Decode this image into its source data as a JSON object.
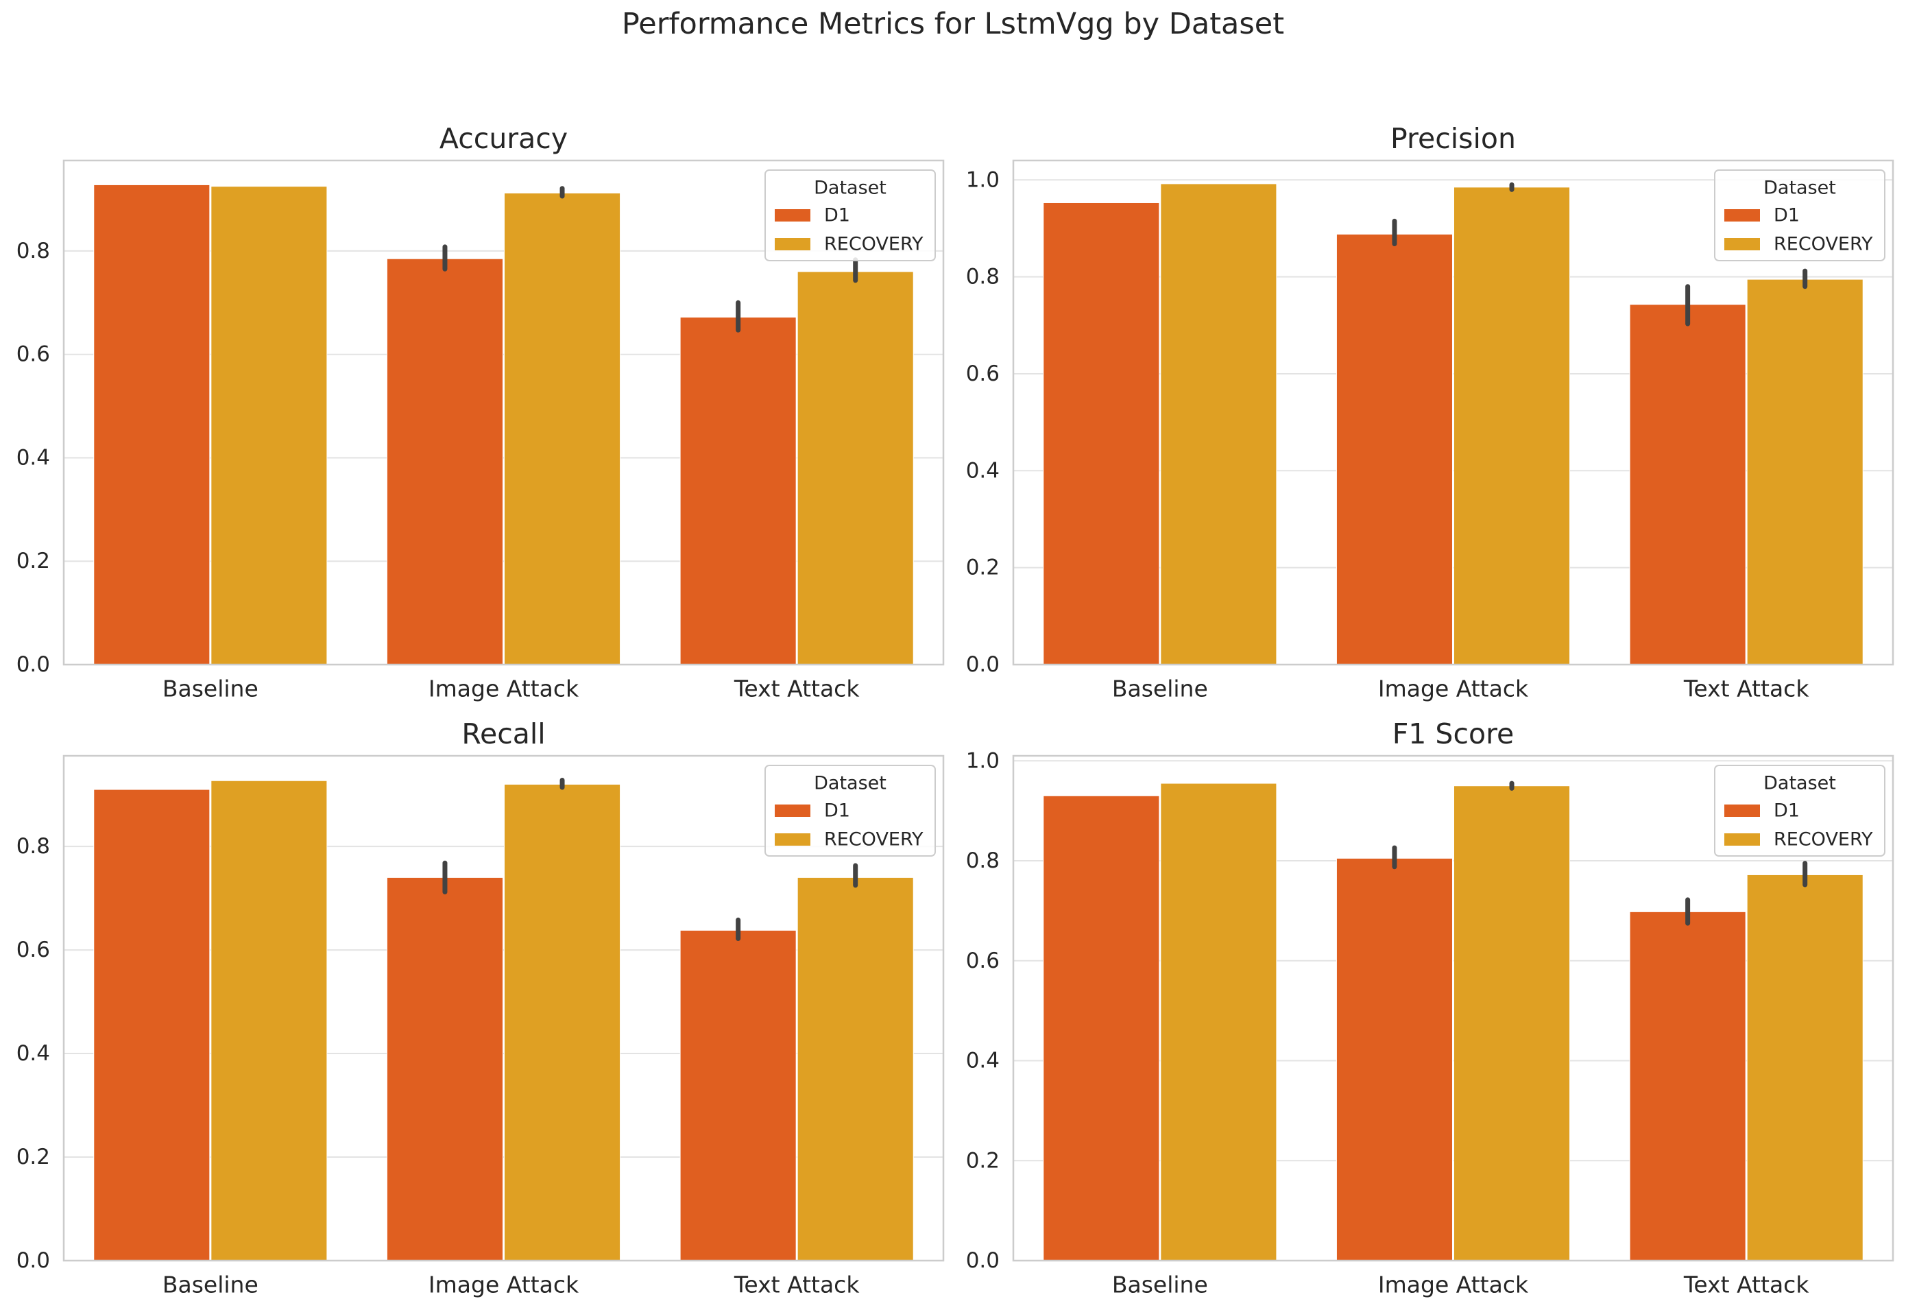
{
  "figure": {
    "title": "Performance Metrics for LstmVgg by Dataset"
  },
  "colors": {
    "D1": "#e05f20",
    "RECOVERY": "#dfa023",
    "grid": "#e3e3e3",
    "spine": "#cccccc",
    "errorbar": "#424242",
    "text": "#262626"
  },
  "chart_data": [
    {
      "type": "bar",
      "title": "Accuracy",
      "categories": [
        "Baseline",
        "Image Attack",
        "Text Attack"
      ],
      "series": [
        {
          "name": "D1",
          "values": [
            0.928,
            0.785,
            0.672
          ],
          "err_low": [
            null,
            0.765,
            0.647
          ],
          "err_high": [
            null,
            0.808,
            0.7
          ]
        },
        {
          "name": "RECOVERY",
          "values": [
            0.925,
            0.912,
            0.76
          ],
          "err_low": [
            null,
            0.906,
            0.743
          ],
          "err_high": [
            null,
            0.921,
            0.783
          ]
        }
      ],
      "yticks": [
        "0.0",
        "0.2",
        "0.4",
        "0.6",
        "0.8"
      ],
      "ylim": [
        0,
        0.975
      ],
      "legend": {
        "title": "Dataset",
        "position": "top-right"
      },
      "grid": true
    },
    {
      "type": "bar",
      "title": "Precision",
      "categories": [
        "Baseline",
        "Image Attack",
        "Text Attack"
      ],
      "series": [
        {
          "name": "D1",
          "values": [
            0.953,
            0.888,
            0.743
          ],
          "err_low": [
            null,
            0.868,
            0.703
          ],
          "err_high": [
            null,
            0.915,
            0.78
          ]
        },
        {
          "name": "RECOVERY",
          "values": [
            0.992,
            0.985,
            0.795
          ],
          "err_low": [
            null,
            0.98,
            0.78
          ],
          "err_high": [
            null,
            0.99,
            0.812
          ]
        }
      ],
      "yticks": [
        "0.0",
        "0.2",
        "0.4",
        "0.6",
        "0.8",
        "1.0"
      ],
      "ylim": [
        0,
        1.04
      ],
      "legend": {
        "title": "Dataset",
        "position": "top-right"
      },
      "grid": true
    },
    {
      "type": "bar",
      "title": "Recall",
      "categories": [
        "Baseline",
        "Image Attack",
        "Text Attack"
      ],
      "series": [
        {
          "name": "D1",
          "values": [
            0.91,
            0.74,
            0.638
          ],
          "err_low": [
            null,
            0.712,
            0.622
          ],
          "err_high": [
            null,
            0.768,
            0.658
          ]
        },
        {
          "name": "RECOVERY",
          "values": [
            0.927,
            0.92,
            0.74
          ],
          "err_low": [
            null,
            0.914,
            0.725
          ],
          "err_high": [
            null,
            0.928,
            0.763
          ]
        }
      ],
      "yticks": [
        "0.0",
        "0.2",
        "0.4",
        "0.6",
        "0.8"
      ],
      "ylim": [
        0,
        0.975
      ],
      "legend": {
        "title": "Dataset",
        "position": "top-right"
      },
      "grid": true
    },
    {
      "type": "bar",
      "title": "F1 Score",
      "categories": [
        "Baseline",
        "Image Attack",
        "Text Attack"
      ],
      "series": [
        {
          "name": "D1",
          "values": [
            0.93,
            0.805,
            0.698
          ],
          "err_low": [
            null,
            0.788,
            0.675
          ],
          "err_high": [
            null,
            0.826,
            0.722
          ]
        },
        {
          "name": "RECOVERY",
          "values": [
            0.955,
            0.95,
            0.772
          ],
          "err_low": [
            null,
            0.945,
            0.752
          ],
          "err_high": [
            null,
            0.955,
            0.795
          ]
        }
      ],
      "yticks": [
        "0.0",
        "0.2",
        "0.4",
        "0.6",
        "0.8",
        "1.0"
      ],
      "ylim": [
        0,
        1.01
      ],
      "legend": {
        "title": "Dataset",
        "position": "top-right"
      },
      "grid": true
    }
  ]
}
